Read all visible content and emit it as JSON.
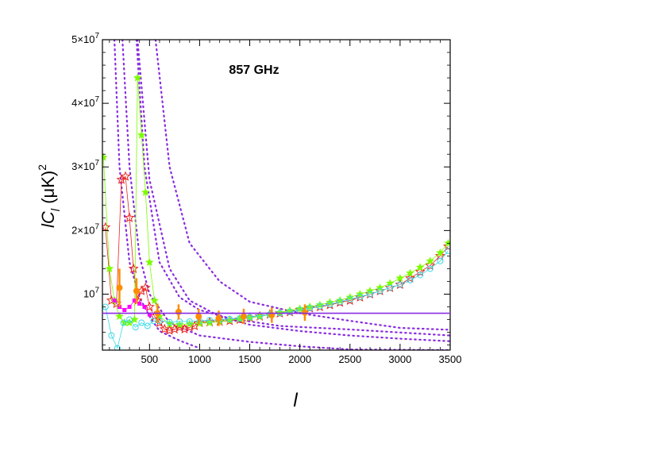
{
  "chart_data": {
    "type": "scatter",
    "title": "857 GHz",
    "xlabel": "l",
    "ylabel_parts": {
      "main": "lC",
      "sub": "l",
      "unit": "(μK)",
      "power": "2"
    },
    "xlim": [
      30,
      3500
    ],
    "ylim": [
      1200000,
      50000000
    ],
    "x_ticks": [
      {
        "value": 500,
        "label": "500"
      },
      {
        "value": 1000,
        "label": "1000"
      },
      {
        "value": 1500,
        "label": "1500"
      },
      {
        "value": 2000,
        "label": "2000"
      },
      {
        "value": 2500,
        "label": "2500"
      },
      {
        "value": 3000,
        "label": "3000"
      },
      {
        "value": 3500,
        "label": "3500"
      }
    ],
    "y_ticks": [
      {
        "value": 10000000,
        "mant": "10",
        "exp": "7"
      },
      {
        "value": 20000000,
        "mant": "2×10",
        "exp": "7"
      },
      {
        "value": 30000000,
        "mant": "3×10",
        "exp": "7"
      },
      {
        "value": 40000000,
        "mant": "4×10",
        "exp": "7"
      },
      {
        "value": 50000000,
        "mant": "5×10",
        "exp": "7"
      }
    ],
    "grid": false,
    "legend": "none",
    "hline": {
      "y": 7000000,
      "color": "#8a2be2"
    },
    "dotted_curves": {
      "color": "#8a2be2",
      "x": [
        30,
        100,
        150,
        200,
        250,
        300,
        350,
        400,
        450,
        500,
        600,
        700,
        800,
        1000,
        1200,
        1500,
        1800,
        2000,
        2500,
        3000,
        3500
      ],
      "curves": [
        [
          1200000,
          1200000,
          1200000,
          1200000,
          1200000,
          1200000,
          1200000,
          1200000,
          1200000,
          1200000,
          1200000,
          2500000,
          2700000,
          2800000,
          2900000,
          3000000,
          3100000,
          3200000,
          3300000,
          3400000,
          3500000
        ],
        [
          1200000,
          1200000,
          1200000,
          1200000,
          1200000,
          1200000,
          1200000,
          1200000,
          1200000,
          1200000,
          4200000,
          4300000,
          4300000,
          4350000,
          4350000,
          4400000,
          4400000,
          4400000,
          4450000,
          4450000,
          4450000
        ],
        [
          1200000,
          1200000,
          1200000,
          1200000,
          1200000,
          1200000,
          1200000,
          1200000,
          1200000,
          1200000,
          1200000,
          1200000,
          1200000,
          1200000,
          2500000,
          2700000,
          2900000,
          3000000,
          3300000,
          3500000,
          3700000
        ]
      ]
    },
    "series": [
      {
        "marker": "star-open",
        "color": "#e8241f",
        "x": [
          60,
          120,
          170,
          220,
          260,
          300,
          340,
          380,
          420,
          460,
          500,
          550,
          600,
          650,
          700,
          750,
          800,
          850,
          900,
          950,
          1000,
          1100,
          1200,
          1300,
          1400,
          1500,
          1600,
          1700,
          1800,
          1900,
          2000,
          2100,
          2200,
          2300,
          2400,
          2500,
          2600,
          2700,
          2800,
          2900,
          3000,
          3100,
          3200,
          3300,
          3400,
          3480
        ],
        "y": [
          20500000,
          9000000,
          8500000,
          28000000,
          28500000,
          22000000,
          14000000,
          9000000,
          10500000,
          11000000,
          8000000,
          6500000,
          5500000,
          4500000,
          4300000,
          4500000,
          4800000,
          4500000,
          4800000,
          5000000,
          5500000,
          5600000,
          5700000,
          5800000,
          6000000,
          6300000,
          6500000,
          6800000,
          7000000,
          7200000,
          7500000,
          7800000,
          8000000,
          8300000,
          8700000,
          9000000,
          9500000,
          10000000,
          10500000,
          11000000,
          11500000,
          12500000,
          13500000,
          14500000,
          16000000,
          17500000
        ]
      },
      {
        "marker": "star-filled",
        "color": "#7cfc00",
        "x": [
          40,
          100,
          150,
          200,
          250,
          300,
          350,
          380,
          420,
          460,
          500,
          550,
          600,
          700,
          800,
          900,
          1000,
          1100,
          1200,
          1300,
          1400,
          1500,
          1600,
          1700,
          1800,
          1900,
          2000,
          2100,
          2200,
          2300,
          2400,
          2500,
          2600,
          2700,
          2800,
          2900,
          3000,
          3100,
          3200,
          3300,
          3400,
          3480
        ],
        "y": [
          31500000,
          14000000,
          9000000,
          6500000,
          5500000,
          5500000,
          6000000,
          44000000,
          35000000,
          26000000,
          15000000,
          9000000,
          6500000,
          5300000,
          5200000,
          5300000,
          5400000,
          5500000,
          5700000,
          5900000,
          6100000,
          6300000,
          6500000,
          6800000,
          7100000,
          7400000,
          7700000,
          8000000,
          8300000,
          8700000,
          9000000,
          9500000,
          10000000,
          10500000,
          11000000,
          11700000,
          12500000,
          13300000,
          14200000,
          15200000,
          16500000,
          18000000
        ]
      },
      {
        "marker": "square",
        "color": "#ff00ff",
        "x": [
          150,
          200,
          250,
          300,
          350,
          400,
          450,
          500
        ],
        "y": [
          9000000,
          8000000,
          7500000,
          8000000,
          9000000,
          8500000,
          8000000,
          6800000
        ]
      },
      {
        "marker": "circle-open",
        "color": "#3ad9e6",
        "x": [
          60,
          120,
          180,
          240,
          300,
          360,
          420,
          480,
          540,
          600,
          700,
          800,
          900,
          1000,
          1100,
          1200,
          1300,
          1400,
          1500,
          1600,
          1700,
          1800,
          1900,
          2000,
          2100,
          2200,
          2300,
          2400,
          2500,
          2600,
          2700,
          2800,
          2900,
          3000,
          3100,
          3200,
          3300,
          3400,
          3480
        ],
        "y": [
          8000000,
          3500000,
          1500000,
          5500000,
          6000000,
          4800000,
          5500000,
          5000000,
          5800000,
          5800000,
          5600000,
          5700000,
          5700000,
          5800000,
          5900000,
          6000000,
          6100000,
          6200000,
          6400000,
          6600000,
          6800000,
          7000000,
          7200000,
          7500000,
          7800000,
          8100000,
          8400000,
          8800000,
          9200000,
          9600000,
          10000000,
          10500000,
          11000000,
          11500000,
          12200000,
          13000000,
          14000000,
          15200000,
          16800000
        ]
      },
      {
        "marker": "circle-filled-errorbar",
        "color": "#ff8c00",
        "x": [
          200,
          370,
          580,
          790,
          990,
          1190,
          1440,
          1720,
          2050
        ],
        "y": [
          11000000,
          10500000,
          7000000,
          7200000,
          6500000,
          6200000,
          6500000,
          6700000,
          7100000
        ],
        "err": [
          3000000,
          2000000,
          1500000,
          1200000,
          1200000,
          1200000,
          1200000,
          1200000,
          1300000
        ]
      }
    ]
  }
}
